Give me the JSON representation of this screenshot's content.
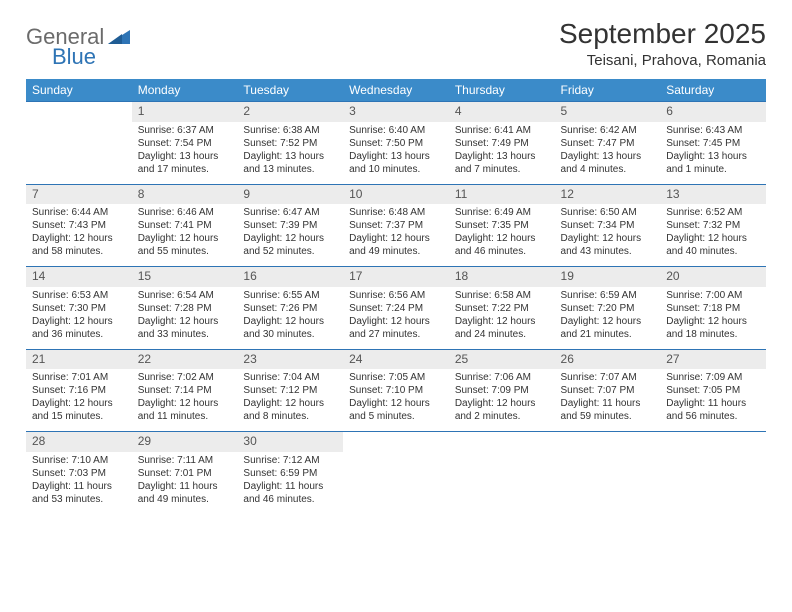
{
  "brand": {
    "part1": "General",
    "part2": "Blue"
  },
  "title": "September 2025",
  "location": "Teisani, Prahova, Romania",
  "colors": {
    "header_bg": "#3b8bc9",
    "header_text": "#ffffff",
    "daynum_bg": "#ececec",
    "border": "#2e74b5",
    "brand_gray": "#6b6b6b",
    "brand_blue": "#2e74b5",
    "page_bg": "#ffffff"
  },
  "weekdays": [
    "Sunday",
    "Monday",
    "Tuesday",
    "Wednesday",
    "Thursday",
    "Friday",
    "Saturday"
  ],
  "weeks": [
    [
      null,
      {
        "n": "1",
        "sr": "Sunrise: 6:37 AM",
        "ss": "Sunset: 7:54 PM",
        "d1": "Daylight: 13 hours",
        "d2": "and 17 minutes."
      },
      {
        "n": "2",
        "sr": "Sunrise: 6:38 AM",
        "ss": "Sunset: 7:52 PM",
        "d1": "Daylight: 13 hours",
        "d2": "and 13 minutes."
      },
      {
        "n": "3",
        "sr": "Sunrise: 6:40 AM",
        "ss": "Sunset: 7:50 PM",
        "d1": "Daylight: 13 hours",
        "d2": "and 10 minutes."
      },
      {
        "n": "4",
        "sr": "Sunrise: 6:41 AM",
        "ss": "Sunset: 7:49 PM",
        "d1": "Daylight: 13 hours",
        "d2": "and 7 minutes."
      },
      {
        "n": "5",
        "sr": "Sunrise: 6:42 AM",
        "ss": "Sunset: 7:47 PM",
        "d1": "Daylight: 13 hours",
        "d2": "and 4 minutes."
      },
      {
        "n": "6",
        "sr": "Sunrise: 6:43 AM",
        "ss": "Sunset: 7:45 PM",
        "d1": "Daylight: 13 hours",
        "d2": "and 1 minute."
      }
    ],
    [
      {
        "n": "7",
        "sr": "Sunrise: 6:44 AM",
        "ss": "Sunset: 7:43 PM",
        "d1": "Daylight: 12 hours",
        "d2": "and 58 minutes."
      },
      {
        "n": "8",
        "sr": "Sunrise: 6:46 AM",
        "ss": "Sunset: 7:41 PM",
        "d1": "Daylight: 12 hours",
        "d2": "and 55 minutes."
      },
      {
        "n": "9",
        "sr": "Sunrise: 6:47 AM",
        "ss": "Sunset: 7:39 PM",
        "d1": "Daylight: 12 hours",
        "d2": "and 52 minutes."
      },
      {
        "n": "10",
        "sr": "Sunrise: 6:48 AM",
        "ss": "Sunset: 7:37 PM",
        "d1": "Daylight: 12 hours",
        "d2": "and 49 minutes."
      },
      {
        "n": "11",
        "sr": "Sunrise: 6:49 AM",
        "ss": "Sunset: 7:35 PM",
        "d1": "Daylight: 12 hours",
        "d2": "and 46 minutes."
      },
      {
        "n": "12",
        "sr": "Sunrise: 6:50 AM",
        "ss": "Sunset: 7:34 PM",
        "d1": "Daylight: 12 hours",
        "d2": "and 43 minutes."
      },
      {
        "n": "13",
        "sr": "Sunrise: 6:52 AM",
        "ss": "Sunset: 7:32 PM",
        "d1": "Daylight: 12 hours",
        "d2": "and 40 minutes."
      }
    ],
    [
      {
        "n": "14",
        "sr": "Sunrise: 6:53 AM",
        "ss": "Sunset: 7:30 PM",
        "d1": "Daylight: 12 hours",
        "d2": "and 36 minutes."
      },
      {
        "n": "15",
        "sr": "Sunrise: 6:54 AM",
        "ss": "Sunset: 7:28 PM",
        "d1": "Daylight: 12 hours",
        "d2": "and 33 minutes."
      },
      {
        "n": "16",
        "sr": "Sunrise: 6:55 AM",
        "ss": "Sunset: 7:26 PM",
        "d1": "Daylight: 12 hours",
        "d2": "and 30 minutes."
      },
      {
        "n": "17",
        "sr": "Sunrise: 6:56 AM",
        "ss": "Sunset: 7:24 PM",
        "d1": "Daylight: 12 hours",
        "d2": "and 27 minutes."
      },
      {
        "n": "18",
        "sr": "Sunrise: 6:58 AM",
        "ss": "Sunset: 7:22 PM",
        "d1": "Daylight: 12 hours",
        "d2": "and 24 minutes."
      },
      {
        "n": "19",
        "sr": "Sunrise: 6:59 AM",
        "ss": "Sunset: 7:20 PM",
        "d1": "Daylight: 12 hours",
        "d2": "and 21 minutes."
      },
      {
        "n": "20",
        "sr": "Sunrise: 7:00 AM",
        "ss": "Sunset: 7:18 PM",
        "d1": "Daylight: 12 hours",
        "d2": "and 18 minutes."
      }
    ],
    [
      {
        "n": "21",
        "sr": "Sunrise: 7:01 AM",
        "ss": "Sunset: 7:16 PM",
        "d1": "Daylight: 12 hours",
        "d2": "and 15 minutes."
      },
      {
        "n": "22",
        "sr": "Sunrise: 7:02 AM",
        "ss": "Sunset: 7:14 PM",
        "d1": "Daylight: 12 hours",
        "d2": "and 11 minutes."
      },
      {
        "n": "23",
        "sr": "Sunrise: 7:04 AM",
        "ss": "Sunset: 7:12 PM",
        "d1": "Daylight: 12 hours",
        "d2": "and 8 minutes."
      },
      {
        "n": "24",
        "sr": "Sunrise: 7:05 AM",
        "ss": "Sunset: 7:10 PM",
        "d1": "Daylight: 12 hours",
        "d2": "and 5 minutes."
      },
      {
        "n": "25",
        "sr": "Sunrise: 7:06 AM",
        "ss": "Sunset: 7:09 PM",
        "d1": "Daylight: 12 hours",
        "d2": "and 2 minutes."
      },
      {
        "n": "26",
        "sr": "Sunrise: 7:07 AM",
        "ss": "Sunset: 7:07 PM",
        "d1": "Daylight: 11 hours",
        "d2": "and 59 minutes."
      },
      {
        "n": "27",
        "sr": "Sunrise: 7:09 AM",
        "ss": "Sunset: 7:05 PM",
        "d1": "Daylight: 11 hours",
        "d2": "and 56 minutes."
      }
    ],
    [
      {
        "n": "28",
        "sr": "Sunrise: 7:10 AM",
        "ss": "Sunset: 7:03 PM",
        "d1": "Daylight: 11 hours",
        "d2": "and 53 minutes."
      },
      {
        "n": "29",
        "sr": "Sunrise: 7:11 AM",
        "ss": "Sunset: 7:01 PM",
        "d1": "Daylight: 11 hours",
        "d2": "and 49 minutes."
      },
      {
        "n": "30",
        "sr": "Sunrise: 7:12 AM",
        "ss": "Sunset: 6:59 PM",
        "d1": "Daylight: 11 hours",
        "d2": "and 46 minutes."
      },
      null,
      null,
      null,
      null
    ]
  ]
}
